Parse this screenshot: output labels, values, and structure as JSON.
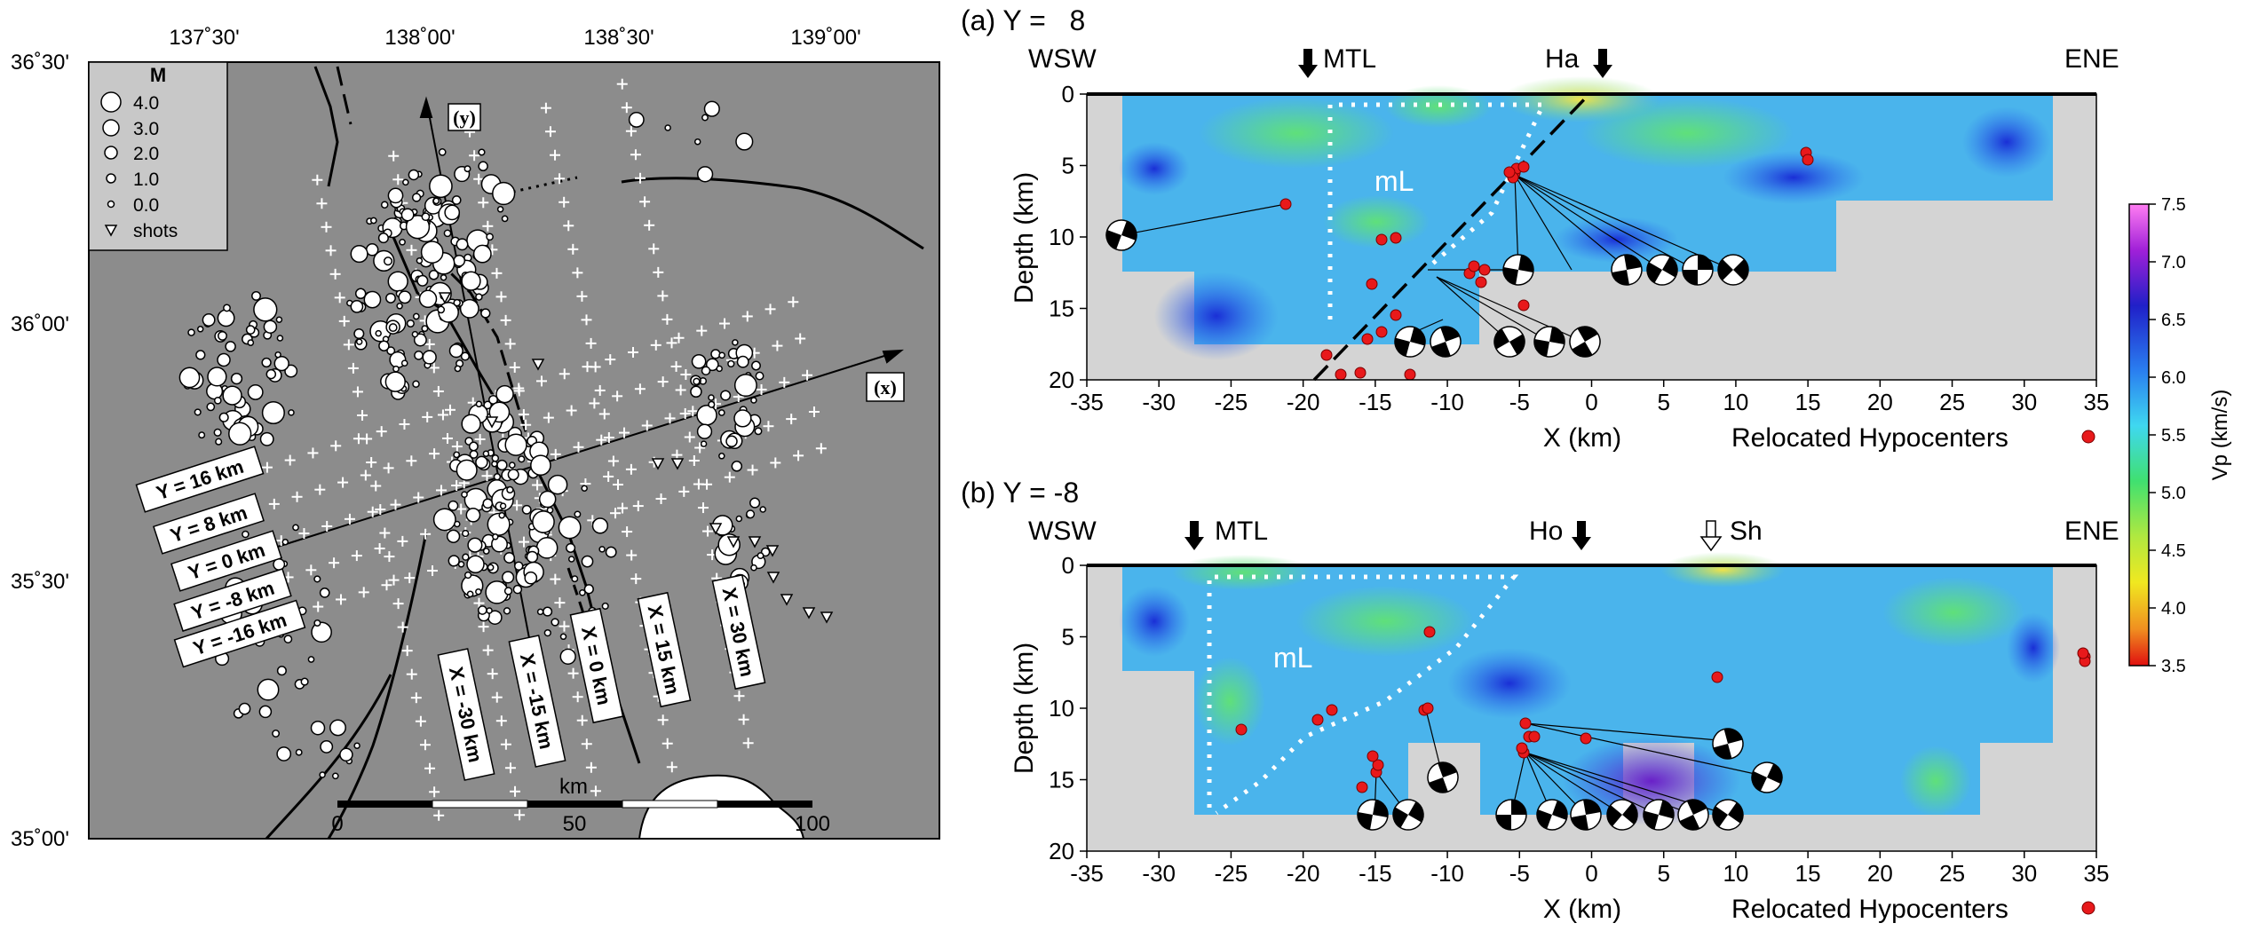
{
  "map": {
    "lon_labels": [
      "137˚30'",
      "138˚00'",
      "138˚30'",
      "139˚00'"
    ],
    "lat_labels": [
      "36˚30'",
      "36˚00'",
      "35˚30'",
      "35˚00'"
    ],
    "legend_title": "M",
    "legend_items": [
      "4.0",
      "3.0",
      "2.0",
      "1.0",
      "0.0",
      "shots"
    ],
    "y_axis_label": "(y)",
    "x_axis_label": "(x)",
    "profiles_y": [
      "Y = 16 km",
      "Y = 8 km",
      "Y = 0 km",
      "Y = -8 km",
      "Y = -16 km"
    ],
    "profiles_x": [
      "X = -30 km",
      "X = -15 km",
      "X = 0 km",
      "X = 15 km",
      "X = 30 km"
    ],
    "scale_unit": "km",
    "scale_ticks": [
      "0",
      "50",
      "100"
    ]
  },
  "panel_a": {
    "title": "(a) Y =   8",
    "left_dir": "WSW",
    "right_dir": "ENE",
    "markers": [
      "MTL",
      "Ha"
    ],
    "region_label": "mL",
    "ylabel": "Depth (km)",
    "xlabel": "X (km)",
    "legend": "Relocated Hypocenters",
    "x_ticks": [
      "-35",
      "-30",
      "-25",
      "-20",
      "-15",
      "-10",
      "-5",
      "0",
      "5",
      "10",
      "15",
      "20",
      "25",
      "30",
      "35"
    ],
    "y_ticks": [
      "0",
      "5",
      "10",
      "15",
      "20"
    ]
  },
  "panel_b": {
    "title": "(b) Y = -8",
    "left_dir": "WSW",
    "right_dir": "ENE",
    "markers": [
      "MTL",
      "Ho",
      "Sh"
    ],
    "region_label": "mL",
    "ylabel": "Depth (km)",
    "xlabel": "X (km)",
    "legend": "Relocated Hypocenters",
    "x_ticks": [
      "-35",
      "-30",
      "-25",
      "-20",
      "-15",
      "-10",
      "-5",
      "0",
      "5",
      "10",
      "15",
      "20",
      "25",
      "30",
      "35"
    ],
    "y_ticks": [
      "0",
      "5",
      "10",
      "15",
      "20"
    ]
  },
  "colorbar": {
    "label": "Vp (km/s)",
    "ticks": [
      "7.5",
      "7.0",
      "6.5",
      "6.0",
      "5.5",
      "5.0",
      "4.5",
      "4.0",
      "3.5"
    ]
  },
  "colors": {
    "map_bg": "#8c8c8c",
    "gap_gray": "#d4d4d4",
    "hypocenter": "#e8191b"
  }
}
